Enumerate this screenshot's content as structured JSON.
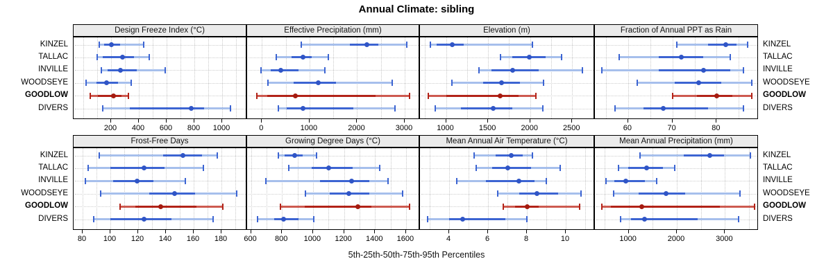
{
  "title": "Annual Climate: sibling",
  "caption": "5th-25th-50th-75th-95th Percentiles",
  "sites": [
    "KINZEL",
    "TALLAC",
    "INVILLE",
    "WOODSEYE",
    "GOODLOW",
    "DIVERS"
  ],
  "highlight_site": "GOODLOW",
  "percentile_labels": [
    "5th",
    "25th",
    "50th",
    "75th",
    "95th"
  ],
  "colors": {
    "series_blue": "#3c64d2",
    "series_blue_light": "#a6bfec",
    "series_blue_dot": "#3055c6",
    "series_red": "#b22318",
    "series_red_light": "#cd5a50",
    "series_red_dot": "#a51b0f",
    "strip_bg": "#ebebeb",
    "panel_border": "#000000",
    "gridline": "#c8c8c8"
  },
  "chart_data": {
    "type": "dotplot-percentile-grid",
    "layout": "4 columns x 2 rows of panels, shared site axis, GOODLOW highlighted red",
    "values_are": "[p5, p25, p50, p75, p95] per site, read from axes",
    "panels": [
      {
        "label": "Design Freeze Index (°C)",
        "xlim": [
          -70,
          1180
        ],
        "ticks": [
          200,
          400,
          600,
          800,
          1000
        ],
        "grid_step": 100,
        "series": {
          "KINZEL": [
            115,
            150,
            200,
            265,
            435
          ],
          "TALLAC": [
            100,
            140,
            280,
            365,
            475
          ],
          "INVILLE": [
            130,
            175,
            265,
            385,
            590
          ],
          "WOODSEYE": [
            20,
            95,
            165,
            250,
            345
          ],
          "GOODLOW": [
            50,
            105,
            215,
            275,
            325
          ],
          "DIVERS": [
            140,
            335,
            775,
            870,
            1060
          ]
        }
      },
      {
        "label": "Effective Precipitation (mm)",
        "xlim": [
          -310,
          3320
        ],
        "ticks": [
          0,
          1000,
          2000,
          3000
        ],
        "grid_step": 500,
        "series": {
          "KINZEL": [
            830,
            1850,
            2200,
            2450,
            3040
          ],
          "TALLAC": [
            295,
            620,
            860,
            1040,
            1390
          ],
          "INVILLE": [
            -15,
            180,
            390,
            770,
            1320
          ],
          "WOODSEYE": [
            130,
            670,
            1190,
            1550,
            2730
          ],
          "GOODLOW": [
            -110,
            110,
            710,
            2390,
            3100
          ],
          "DIVERS": [
            350,
            520,
            860,
            1920,
            2790
          ]
        }
      },
      {
        "label": "Elevation (m)",
        "xlim": [
          690,
          2770
        ],
        "ticks": [
          1000,
          1500,
          2000,
          2500
        ],
        "grid_step": 250,
        "series": {
          "KINZEL": [
            810,
            890,
            1070,
            1210,
            2030
          ],
          "TALLAC": [
            1650,
            1790,
            1990,
            2180,
            2370
          ],
          "INVILLE": [
            1390,
            1540,
            1790,
            2100,
            2620
          ],
          "WOODSEYE": [
            1070,
            1440,
            1660,
            1880,
            2160
          ],
          "GOODLOW": [
            790,
            1000,
            1640,
            1860,
            2070
          ],
          "DIVERS": [
            870,
            1180,
            1560,
            1790,
            2150
          ]
        }
      },
      {
        "label": "Fraction of Annual PPT as Rain",
        "xlim": [
          52.5,
          89.5
        ],
        "ticks": [
          60,
          70,
          80
        ],
        "grid_step": 5,
        "series": {
          "KINZEL": [
            71,
            78,
            82,
            84.5,
            87
          ],
          "TALLAC": [
            58,
            67,
            72,
            77,
            83
          ],
          "INVILLE": [
            54,
            67,
            77,
            83,
            86
          ],
          "WOODSEYE": [
            62,
            70.5,
            76,
            81,
            88
          ],
          "GOODLOW": [
            70,
            75.5,
            80,
            83.5,
            88
          ],
          "DIVERS": [
            57,
            63.5,
            68,
            78,
            86
          ]
        }
      },
      {
        "label": "Frost-Free Days",
        "xlim": [
          73.5,
          198.5
        ],
        "ticks": [
          80,
          100,
          120,
          140,
          160,
          180
        ],
        "grid_step": 10,
        "series": {
          "KINZEL": [
            92,
            138,
            152,
            166,
            177
          ],
          "TALLAC": [
            84,
            100,
            124,
            139,
            167
          ],
          "INVILLE": [
            82,
            102,
            119,
            131,
            154
          ],
          "WOODSEYE": [
            93,
            128,
            146,
            161,
            191
          ],
          "GOODLOW": [
            107,
            118,
            136,
            162,
            181
          ],
          "DIVERS": [
            88,
            100,
            124,
            144,
            174
          ]
        }
      },
      {
        "label": "Growing Degree Days (°C)",
        "xlim": [
          575,
          1690
        ],
        "ticks": [
          600,
          800,
          1000,
          1200,
          1400,
          1600
        ],
        "grid_step": 100,
        "series": {
          "KINZEL": [
            775,
            815,
            880,
            935,
            1025
          ],
          "TALLAC": [
            845,
            990,
            1100,
            1255,
            1430
          ],
          "INVILLE": [
            695,
            1045,
            1250,
            1365,
            1485
          ],
          "WOODSEYE": [
            950,
            1110,
            1230,
            1365,
            1580
          ],
          "GOODLOW": [
            790,
            945,
            1290,
            1375,
            1625
          ],
          "DIVERS": [
            640,
            750,
            810,
            905,
            1005
          ]
        }
      },
      {
        "label": "Mean Annual Air Temperature (°C)",
        "xlim": [
          2.5,
          11.5
        ],
        "ticks": [
          4,
          6,
          8,
          10
        ],
        "grid_step": 1,
        "series": {
          "KINZEL": [
            5.3,
            6.4,
            7.2,
            7.8,
            8.3
          ],
          "TALLAC": [
            5.4,
            6.2,
            7.0,
            8.2,
            9.7
          ],
          "INVILLE": [
            4.4,
            5.9,
            7.6,
            8.4,
            9.0
          ],
          "WOODSEYE": [
            6.5,
            7.6,
            8.5,
            9.6,
            10.8
          ],
          "GOODLOW": [
            6.8,
            7.4,
            8.0,
            8.6,
            10.7
          ],
          "DIVERS": [
            2.9,
            4.0,
            4.7,
            6.9,
            8.0
          ]
        }
      },
      {
        "label": "Mean Annual Precipitation (mm)",
        "xlim": [
          300,
          3700
        ],
        "ticks": [
          1000,
          2000,
          3000
        ],
        "grid_step": 500,
        "series": {
          "KINZEL": [
            1240,
            2150,
            2690,
            2980,
            3520
          ],
          "TALLAC": [
            785,
            990,
            1380,
            1715,
            1950
          ],
          "INVILLE": [
            530,
            710,
            940,
            1340,
            1580
          ],
          "WOODSEYE": [
            690,
            1210,
            1780,
            2175,
            3315
          ],
          "GOODLOW": [
            440,
            625,
            1270,
            2900,
            3615
          ],
          "DIVERS": [
            835,
            1050,
            1330,
            2435,
            3275
          ]
        }
      }
    ]
  }
}
